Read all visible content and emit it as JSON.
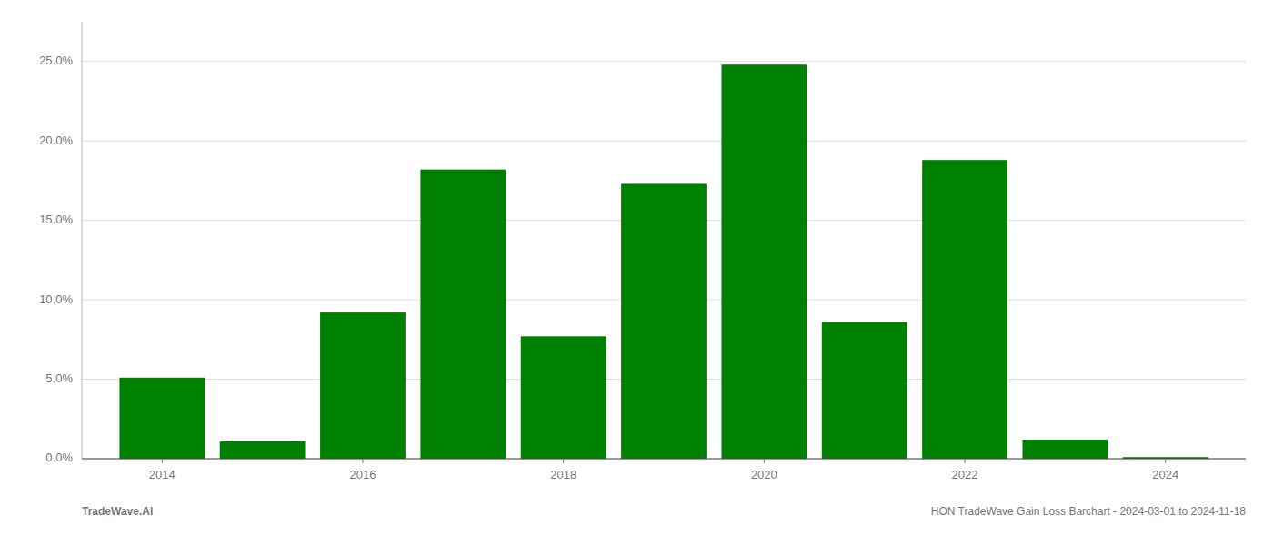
{
  "chart_data": {
    "type": "bar",
    "x": [
      2014,
      2015,
      2016,
      2017,
      2018,
      2019,
      2020,
      2021,
      2022,
      2023,
      2024
    ],
    "values": [
      0.051,
      0.011,
      0.092,
      0.182,
      0.077,
      0.173,
      0.248,
      0.086,
      0.188,
      0.012,
      0.001
    ],
    "color": "#008000",
    "xlim": [
      2013.2,
      2024.8
    ],
    "xticks": [
      2014,
      2016,
      2018,
      2020,
      2022,
      2024
    ],
    "ylim": [
      0,
      0.275
    ],
    "yticks": [
      {
        "value": 0.0,
        "label": "0.0%"
      },
      {
        "value": 0.05,
        "label": "5.0%"
      },
      {
        "value": 0.1,
        "label": "10.0%"
      },
      {
        "value": 0.15,
        "label": "15.0%"
      },
      {
        "value": 0.2,
        "label": "20.0%"
      },
      {
        "value": 0.25,
        "label": "25.0%"
      }
    ],
    "grid": true,
    "annotations": [
      "TradeWave.AI",
      "HON TradeWave Gain Loss Barchart - 2024-03-01 to 2024-11-18"
    ]
  }
}
